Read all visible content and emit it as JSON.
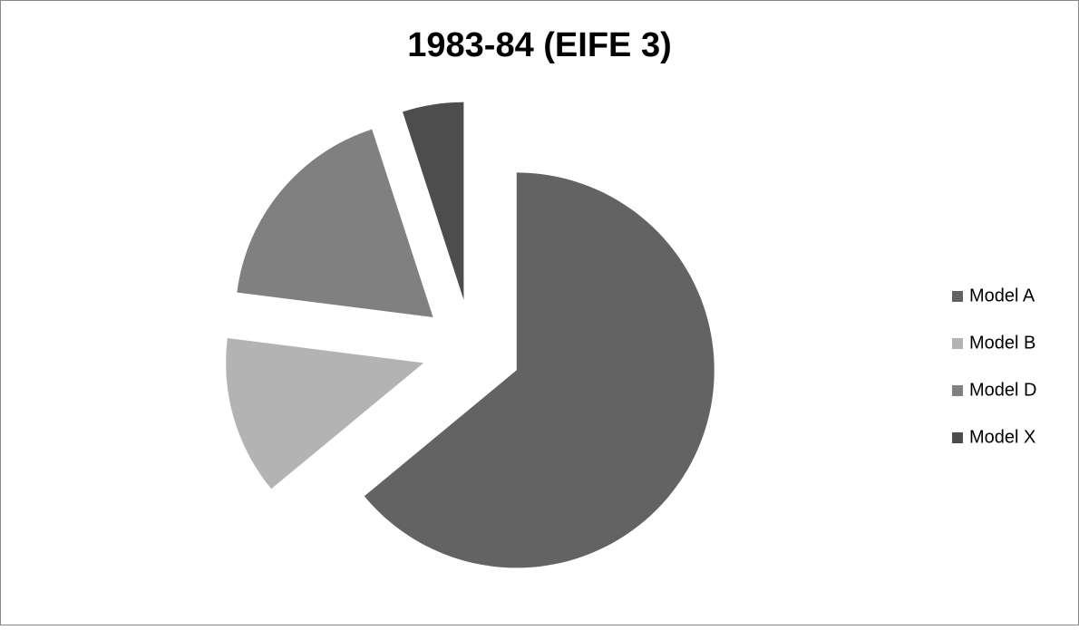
{
  "chart_data": {
    "type": "pie",
    "title": "1983-84 (EIFE 3)",
    "categories": [
      "Model A",
      "Model B",
      "Model D",
      "Model X"
    ],
    "values": [
      64,
      13,
      18,
      5
    ],
    "colors": [
      "#636363",
      "#b3b3b3",
      "#808080",
      "#4d4d4d"
    ],
    "exploded": true,
    "legend": "right"
  }
}
